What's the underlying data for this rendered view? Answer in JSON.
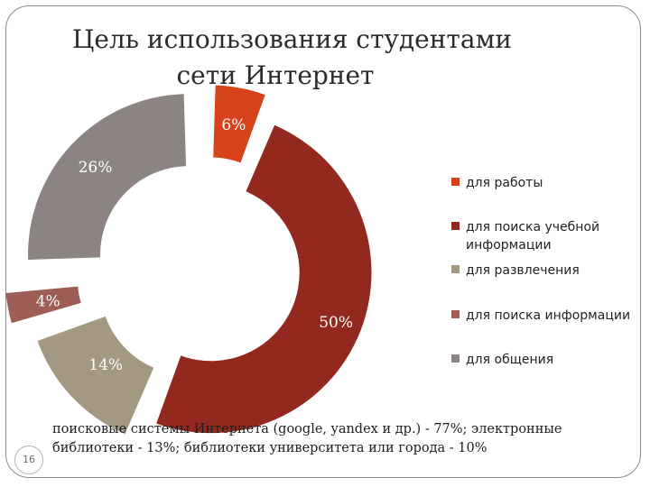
{
  "title": {
    "line1": "Цель использования студентами",
    "line2": "сети Интернет"
  },
  "chart_data": {
    "type": "pie",
    "style": "exploded donut",
    "categories": [
      "для работы",
      "для поиска учебной информации",
      "для развлечения",
      "для поиска информации",
      "для общения"
    ],
    "values": [
      6,
      50,
      14,
      4,
      26
    ],
    "data_labels": [
      "6%",
      "50%",
      "14%",
      "4%",
      "26%"
    ],
    "colors": [
      "#D5421B",
      "#93291E",
      "#A39882",
      "#9E5E55",
      "#8C8383"
    ],
    "legend_position": "right"
  },
  "legend": {
    "items": [
      {
        "label_lines": [
          "для работы"
        ],
        "color": "#D5421B"
      },
      {
        "label_lines": [
          "для поиска учебной",
          "информации"
        ],
        "color": "#93291E"
      },
      {
        "label_lines": [
          "для развлечения"
        ],
        "color": "#A39882"
      },
      {
        "label_lines": [
          "для поиска информации"
        ],
        "color": "#9E5E55"
      },
      {
        "label_lines": [
          "для общения"
        ],
        "color": "#8C8383"
      }
    ]
  },
  "footnote": {
    "line1": "поисковые системы Интернета (google, yandex и др.) - 77%; электронные",
    "line2": "библиотеки - 13%; библиотеки университета или города - 10%"
  },
  "page_number": "16"
}
